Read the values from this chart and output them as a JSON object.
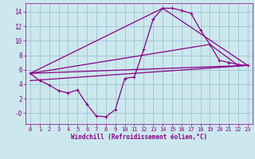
{
  "xlabel": "Windchill (Refroidissement éolien,°C)",
  "bg_color": "#cce8ee",
  "line_color": "#880088",
  "grid_color": "#99bbcc",
  "xlim": [
    -0.5,
    23.5
  ],
  "ylim": [
    -1.5,
    15.2
  ],
  "xticks": [
    0,
    1,
    2,
    3,
    4,
    5,
    6,
    7,
    8,
    9,
    10,
    11,
    12,
    13,
    14,
    15,
    16,
    17,
    18,
    19,
    20,
    21,
    22,
    23
  ],
  "yticks": [
    0,
    2,
    4,
    6,
    8,
    10,
    12,
    14
  ],
  "ytick_labels": [
    "-0",
    "2",
    "4",
    "6",
    "8",
    "10",
    "12",
    "14"
  ],
  "curve1_x": [
    0,
    1,
    2,
    3,
    4,
    5,
    6,
    7,
    8,
    9,
    10,
    11,
    12,
    13,
    14,
    15,
    16,
    17,
    18,
    19,
    20,
    21,
    22,
    23
  ],
  "curve1_y": [
    5.5,
    4.5,
    3.9,
    3.1,
    2.8,
    3.2,
    1.2,
    -0.4,
    -0.5,
    0.5,
    4.8,
    5.0,
    8.8,
    13.0,
    14.5,
    14.5,
    14.2,
    13.8,
    11.5,
    9.5,
    7.3,
    7.0,
    6.7,
    6.6
  ],
  "line1_x": [
    0,
    23
  ],
  "line1_y": [
    5.5,
    6.6
  ],
  "line2_x": [
    0,
    14,
    23
  ],
  "line2_y": [
    5.5,
    14.5,
    6.6
  ],
  "line3_x": [
    0,
    23
  ],
  "line3_y": [
    4.5,
    6.6
  ],
  "line4_x": [
    0,
    19,
    22
  ],
  "line4_y": [
    5.5,
    9.5,
    6.6
  ]
}
